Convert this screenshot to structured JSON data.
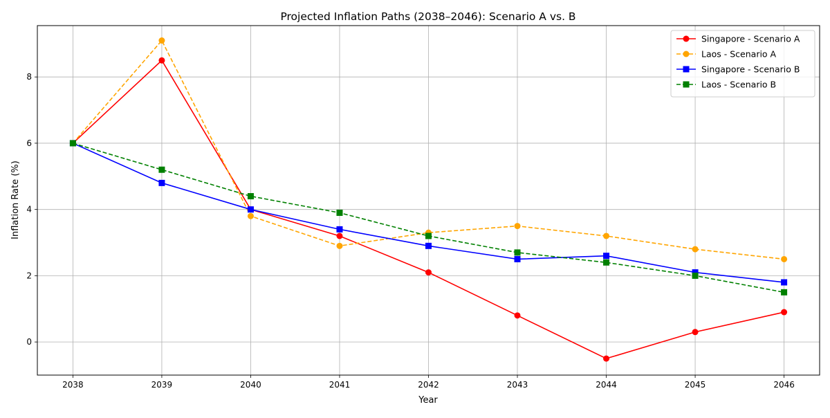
{
  "chart_data": {
    "type": "line",
    "title": "Projected Inflation Paths (2038–2046): Scenario A vs. B",
    "xlabel": "Year",
    "ylabel": "Inflation Rate (%)",
    "x": [
      2038,
      2039,
      2040,
      2041,
      2042,
      2043,
      2044,
      2045,
      2046
    ],
    "xlim": [
      2037.6,
      2046.4
    ],
    "ylim": [
      -1.0,
      9.55
    ],
    "yticks": [
      0,
      2,
      4,
      6,
      8
    ],
    "grid": true,
    "legend_position": "top-right",
    "series": [
      {
        "name": "Singapore - Scenario A",
        "color": "#ff0000",
        "dash": "solid",
        "marker": "circle",
        "values": [
          6.0,
          8.5,
          4.0,
          3.2,
          2.1,
          0.8,
          -0.5,
          0.3,
          0.9
        ]
      },
      {
        "name": "Laos - Scenario A",
        "color": "#ffa500",
        "dash": "dashed",
        "marker": "circle",
        "values": [
          6.0,
          9.1,
          3.8,
          2.9,
          3.3,
          3.5,
          3.2,
          2.8,
          2.5
        ]
      },
      {
        "name": "Singapore - Scenario B",
        "color": "#0000ff",
        "dash": "solid",
        "marker": "square",
        "values": [
          6.0,
          4.8,
          4.0,
          3.4,
          2.9,
          2.5,
          2.6,
          2.1,
          1.8
        ]
      },
      {
        "name": "Laos - Scenario B",
        "color": "#008000",
        "dash": "dashed",
        "marker": "square",
        "values": [
          6.0,
          5.2,
          4.4,
          3.9,
          3.2,
          2.7,
          2.4,
          2.0,
          1.5
        ]
      }
    ]
  }
}
